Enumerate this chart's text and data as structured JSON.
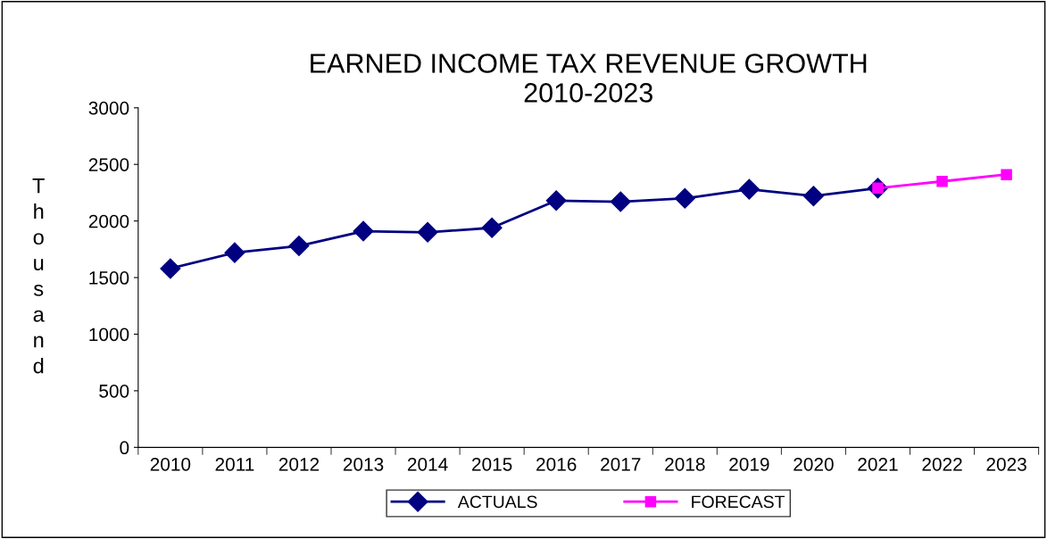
{
  "chart_data": {
    "type": "line",
    "title": "EARNED INCOME TAX REVENUE GROWTH\n2010-2023",
    "ylabel": "Thousand",
    "categories": [
      "2010",
      "2011",
      "2012",
      "2013",
      "2014",
      "2015",
      "2016",
      "2017",
      "2018",
      "2019",
      "2020",
      "2021",
      "2022",
      "2023"
    ],
    "series": [
      {
        "name": "ACTUALS",
        "color": "#000080",
        "marker": "diamond",
        "values": [
          1580,
          1720,
          1780,
          1910,
          1900,
          1940,
          2180,
          2170,
          2200,
          2280,
          2220,
          2290,
          null,
          null
        ]
      },
      {
        "name": "FORECAST",
        "color": "#ff00ff",
        "marker": "square",
        "values": [
          null,
          null,
          null,
          null,
          null,
          null,
          null,
          null,
          null,
          null,
          null,
          2290,
          2350,
          2410
        ]
      }
    ],
    "ylim": [
      0,
      3000
    ],
    "yticks": [
      0,
      500,
      1000,
      1500,
      2000,
      2500,
      3000
    ],
    "grid": false,
    "legend": "bottom"
  }
}
